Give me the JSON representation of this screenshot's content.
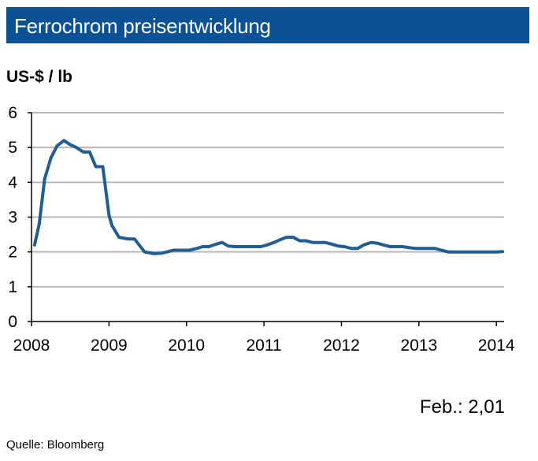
{
  "header": {
    "title": "Ferrochrom preisentwicklung"
  },
  "unit_label": "US-$ / lb",
  "annotation": "Feb.: 2,01",
  "source": "Quelle:  Bloomberg",
  "colors": {
    "title_bar": "#0a5195",
    "line": "#1f5d94",
    "grid": "#b7b7b7"
  },
  "chart_data": {
    "type": "line",
    "title": "Ferrochrom preisentwicklung",
    "ylabel": "US-$ / lb",
    "xlim": [
      2008,
      2014.1
    ],
    "ylim": [
      0,
      6
    ],
    "yticks": [
      0,
      1,
      2,
      3,
      4,
      5,
      6
    ],
    "xticks": [
      2008,
      2009,
      2010,
      2011,
      2012,
      2013,
      2014
    ],
    "xtick_labels": [
      "2008",
      "2009",
      "2010",
      "2011",
      "2012",
      "2013",
      "2014"
    ],
    "ytick_labels": [
      "0",
      "1",
      "2",
      "3",
      "4",
      "5",
      "6"
    ],
    "grid": "horizontal",
    "x": [
      2008.04,
      2008.1,
      2008.17,
      2008.25,
      2008.33,
      2008.42,
      2008.5,
      2008.58,
      2008.67,
      2008.75,
      2008.83,
      2008.92,
      2009.0,
      2009.04,
      2009.13,
      2009.25,
      2009.33,
      2009.46,
      2009.58,
      2009.67,
      2009.75,
      2009.83,
      2009.92,
      2010.04,
      2010.13,
      2010.21,
      2010.29,
      2010.38,
      2010.46,
      2010.54,
      2010.63,
      2010.75,
      2010.83,
      2010.96,
      2011.04,
      2011.13,
      2011.21,
      2011.29,
      2011.38,
      2011.46,
      2011.54,
      2011.63,
      2011.71,
      2011.79,
      2011.88,
      2011.96,
      2012.04,
      2012.13,
      2012.21,
      2012.29,
      2012.38,
      2012.46,
      2012.54,
      2012.63,
      2012.71,
      2012.79,
      2012.88,
      2012.96,
      2013.04,
      2013.13,
      2013.21,
      2013.29,
      2013.38,
      2013.5,
      2013.63,
      2013.75,
      2013.88,
      2014.0,
      2014.08
    ],
    "series": [
      {
        "values": [
          2.2,
          2.8,
          4.1,
          4.7,
          5.05,
          5.2,
          5.08,
          5.0,
          4.87,
          4.87,
          4.45,
          4.45,
          3.05,
          2.75,
          2.42,
          2.37,
          2.37,
          2.0,
          1.95,
          1.96,
          2.0,
          2.05,
          2.05,
          2.05,
          2.1,
          2.15,
          2.15,
          2.22,
          2.27,
          2.17,
          2.15,
          2.15,
          2.15,
          2.15,
          2.2,
          2.27,
          2.35,
          2.42,
          2.42,
          2.32,
          2.32,
          2.27,
          2.27,
          2.27,
          2.22,
          2.17,
          2.15,
          2.1,
          2.1,
          2.2,
          2.27,
          2.25,
          2.2,
          2.15,
          2.15,
          2.15,
          2.12,
          2.1,
          2.1,
          2.1,
          2.1,
          2.05,
          2.0,
          2.0,
          2.0,
          2.0,
          2.0,
          2.0,
          2.01
        ]
      }
    ]
  }
}
